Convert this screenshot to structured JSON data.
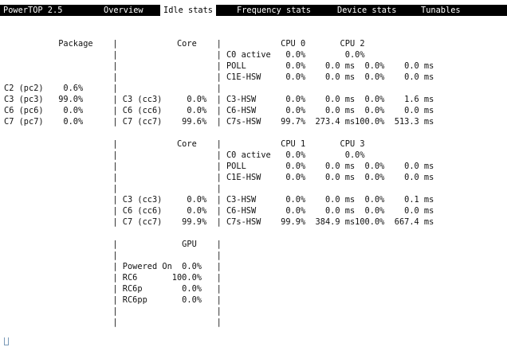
{
  "app": {
    "title": "PowerTOP 2.5"
  },
  "tabs": [
    "Overview",
    "Idle stats",
    "Frequency stats",
    "Device stats",
    "Tunables"
  ],
  "active_tab": "Idle stats",
  "screen_lines": [
    "",
    "",
    "           Package    |            Core    |            CPU 0       CPU 2",
    "                      |                    | C0 active   0.0%        0.0%",
    "                      |                    | POLL        0.0%    0.0 ms  0.0%    0.0 ms",
    "                      |                    | C1E-HSW     0.0%    0.0 ms  0.0%    0.0 ms",
    "C2 (pc2)    0.6%      |                    |",
    "C3 (pc3)   99.0%      | C3 (cc3)     0.0%  | C3-HSW      0.0%    0.0 ms  0.0%    1.6 ms",
    "C6 (pc6)    0.0%      | C6 (cc6)     0.0%  | C6-HSW      0.0%    0.0 ms  0.0%    0.0 ms",
    "C7 (pc7)    0.0%      | C7 (cc7)    99.6%  | C7s-HSW    99.7%  273.4 ms100.0%  513.3 ms",
    "",
    "                      |            Core    |            CPU 1       CPU 3",
    "                      |                    | C0 active   0.0%        0.0%",
    "                      |                    | POLL        0.0%    0.0 ms  0.0%    0.0 ms",
    "                      |                    | C1E-HSW     0.0%    0.0 ms  0.0%    0.0 ms",
    "                      |                    |",
    "                      | C3 (cc3)     0.0%  | C3-HSW      0.0%    0.0 ms  0.0%    0.1 ms",
    "                      | C6 (cc6)     0.0%  | C6-HSW      0.0%    0.0 ms  0.0%    0.0 ms",
    "                      | C7 (cc7)    99.9%  | C7s-HSW    99.9%  384.9 ms100.0%  667.4 ms",
    "",
    "                      |             GPU    |",
    "                      |                    |",
    "                      | Powered On  0.0%   |",
    "                      | RC6       100.0%   |",
    "                      | RC6p        0.0%   |",
    "                      | RC6pp       0.0%   |",
    "                      |                    |",
    "                      |                    |",
    "                      |                    |"
  ],
  "cursor_glyph": "cursor-block-icon"
}
